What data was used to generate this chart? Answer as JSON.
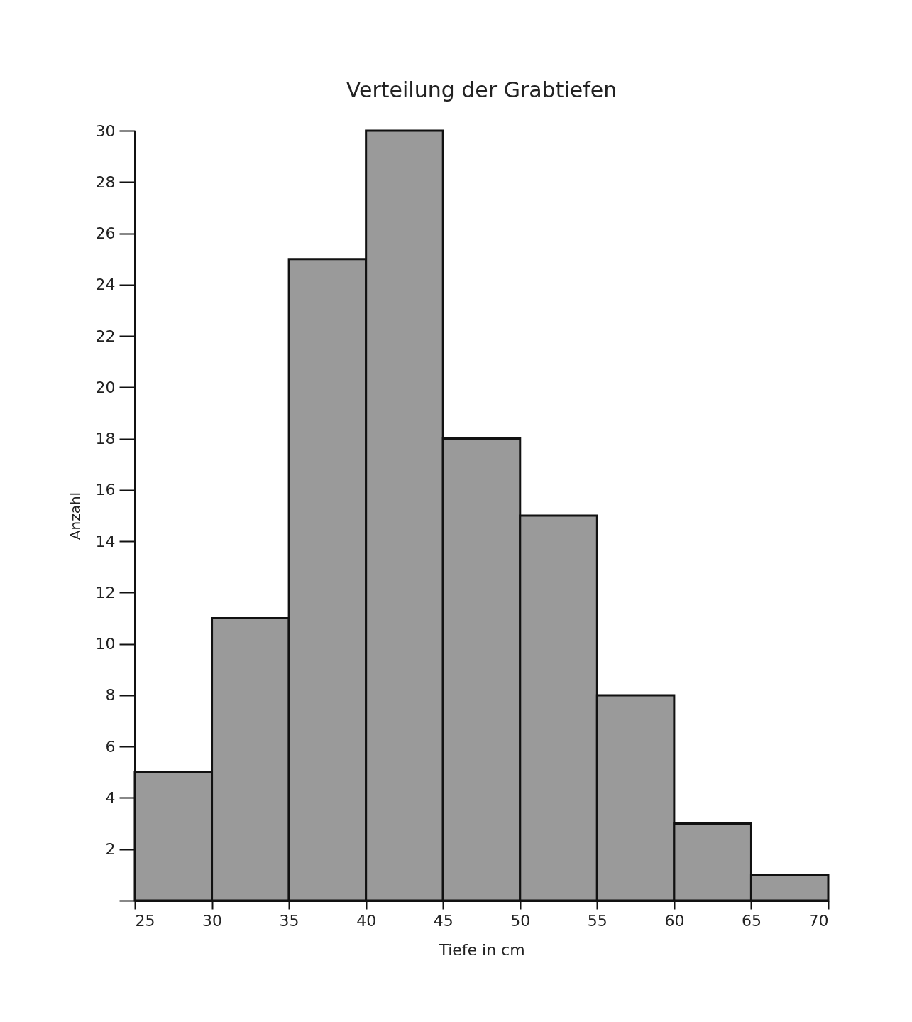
{
  "chart_data": {
    "type": "histogram",
    "title": "Verteilung der Grabtiefen",
    "xlabel": "Tiefe in cm",
    "ylabel": "Anzahl",
    "bins": [
      25,
      30,
      35,
      40,
      45,
      50,
      55,
      60,
      65,
      70
    ],
    "values": [
      5,
      11,
      25,
      30,
      18,
      15,
      8,
      3,
      1
    ],
    "color": "#9a9a9a",
    "xlim": [
      25,
      70
    ],
    "xticks": [
      25,
      30,
      35,
      40,
      45,
      50,
      55,
      60,
      65,
      70
    ],
    "ylim": [
      0,
      30
    ],
    "yticks": [
      {
        "value": 0,
        "label": null
      },
      2,
      4,
      6,
      8,
      10,
      12,
      14,
      16,
      18,
      20,
      22,
      24,
      26,
      28,
      30
    ],
    "grid": false
  }
}
